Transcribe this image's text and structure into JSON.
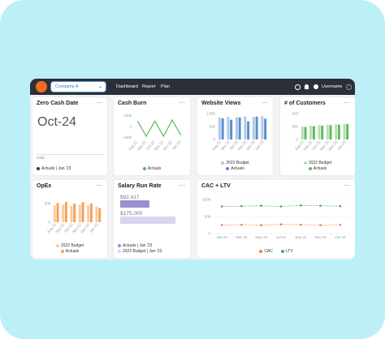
{
  "nav": {
    "company": "Company A",
    "links": [
      "Dashboard",
      "Report",
      "Plan"
    ],
    "user": "Username"
  },
  "widgets": [
    {
      "title": "Zero Cash Date",
      "value": "Oct-24",
      "note": "Total",
      "legend": [
        {
          "name": "Actuals | Jan '23",
          "color": "#3d3d3d"
        }
      ]
    },
    {
      "title": "Cash Burn",
      "type": "line",
      "categories": [
        "Aug 22",
        "Sep 22",
        "Oct 22",
        "Nov 22",
        "Dec 22",
        "Jan 23"
      ],
      "series": [
        {
          "name": "Actuals",
          "color": "#5cb85c",
          "values": [
            50000,
            -90000,
            50000,
            -90000,
            60000,
            -80000
          ]
        }
      ],
      "ylim": [
        -120000,
        120000
      ],
      "yticks": [
        {
          "value": -100000,
          "label": "-100k"
        },
        0,
        {
          "value": 100000,
          "label": "100k"
        }
      ]
    },
    {
      "title": "Website Views",
      "type": "bar",
      "categories": [
        "Aug 22",
        "Sep 22",
        "Oct 22",
        "Nov 22",
        "Dec 22",
        "Jan 23"
      ],
      "series": [
        {
          "name": "2022 Budget",
          "color": "#aecbea",
          "values": [
            850,
            880,
            860,
            900,
            870,
            890
          ]
        },
        {
          "name": "Actuals",
          "color": "#5b8fcf",
          "values": [
            820,
            760,
            850,
            700,
            880,
            800
          ]
        }
      ],
      "ylim": [
        0,
        1000
      ],
      "yticks": [
        0,
        500,
        {
          "value": 1000,
          "label": "1,000"
        }
      ]
    },
    {
      "title": "# of Customers",
      "type": "bar",
      "categories": [
        "Aug 22",
        "Sep 22",
        "Oct 22",
        "Nov 22",
        "Dec 22",
        "Jan 23"
      ],
      "series": [
        {
          "name": "2022 Budget",
          "color": "#b5e0b0",
          "values": [
            300,
            320,
            330,
            340,
            350,
            360
          ]
        },
        {
          "name": "Actuals",
          "color": "#5cb85c",
          "values": [
            290,
            310,
            320,
            330,
            345,
            355
          ]
        }
      ],
      "ylim": [
        0,
        600
      ],
      "yticks": [
        0,
        300,
        600
      ]
    },
    {
      "title": "OpEx",
      "type": "bar",
      "categories": [
        "Aug 22",
        "Sep 22",
        "Oct 22",
        "Nov 22",
        "Dec 22",
        "Jan 23"
      ],
      "series": [
        {
          "name": "2022 Budget",
          "color": "#fbc99a",
          "values": [
            45000,
            48000,
            44000,
            47000,
            46000,
            42000
          ]
        },
        {
          "name": "Actuals",
          "color": "#f5a05a",
          "values": [
            52000,
            55000,
            50000,
            54000,
            51000,
            38000
          ]
        }
      ],
      "ylim": [
        0,
        70000
      ],
      "yticks": [
        0,
        {
          "value": 50000,
          "label": "50k"
        }
      ]
    },
    {
      "title": "Salary Run Rate",
      "type": "hbar",
      "values": [
        92417,
        175000
      ],
      "value_labels": [
        "$92,417",
        "$175,000"
      ],
      "colors": [
        "#9b8fd0",
        "#d8d4ef"
      ],
      "legend": [
        "Actuals | Jan '23",
        "2022 Budget | Jan '23"
      ],
      "xlim": [
        0,
        175000
      ]
    },
    {
      "title": "CAC + LTV",
      "type": "line",
      "dashed": true,
      "markers": true,
      "categories": [
        "Jan 22",
        "Mar 22",
        "May 22",
        "Jul 22",
        "Sep 22",
        "Nov 22",
        "Jan 23"
      ],
      "series": [
        {
          "name": "CAC",
          "color": "#f07f4e",
          "values": [
            25000,
            26000,
            25000,
            27000,
            26000,
            25000,
            26000
          ]
        },
        {
          "name": "LTV",
          "color": "#4caf50",
          "values": [
            80000,
            81000,
            82000,
            80000,
            83000,
            82000,
            81000
          ]
        }
      ],
      "ylim": [
        0,
        110000
      ],
      "yticks": [
        0,
        {
          "value": 50000,
          "label": "50k"
        },
        {
          "value": 100000,
          "label": "100k"
        }
      ]
    }
  ]
}
